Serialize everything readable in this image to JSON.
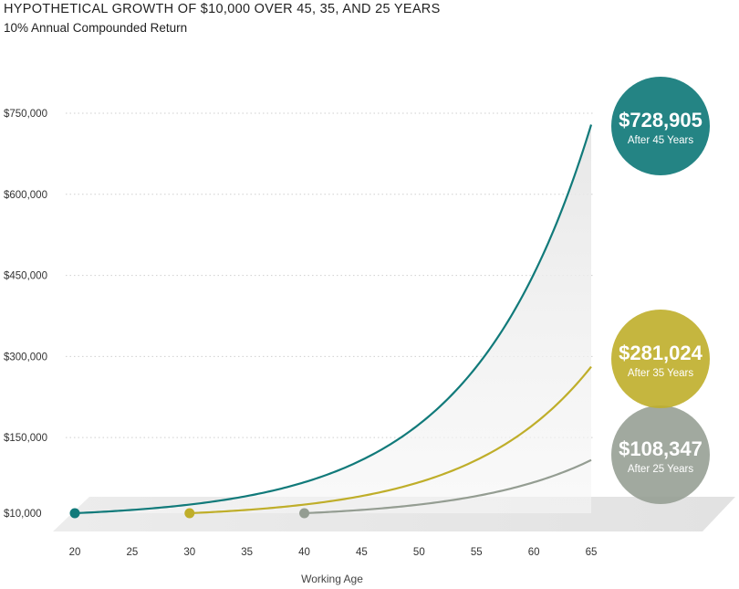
{
  "title": "HYPOTHETICAL GROWTH OF $10,000 OVER 45, 35, AND 25 YEARS",
  "subtitle": "10% Annual Compounded Return",
  "chart_data": {
    "type": "line",
    "xlabel": "Working Age",
    "ylabel": "",
    "x_ticks": [
      20,
      25,
      30,
      35,
      40,
      45,
      50,
      55,
      60,
      65
    ],
    "y_ticks": [
      {
        "value": 10000,
        "label": "$10,000"
      },
      {
        "value": 150000,
        "label": "$150,000"
      },
      {
        "value": 300000,
        "label": "$300,000"
      },
      {
        "value": 450000,
        "label": "$450,000"
      },
      {
        "value": 600000,
        "label": "$600,000"
      },
      {
        "value": 750000,
        "label": "$750,000"
      }
    ],
    "xlim": [
      20,
      65
    ],
    "ylim": [
      10000,
      750000
    ],
    "rate": 0.1,
    "grid": true,
    "series": [
      {
        "start_age": 20,
        "end_age": 65,
        "start_value": 10000,
        "end_value": 728905,
        "color": "#117a7a",
        "value_label": "$728,905",
        "sub_label": "After 45 Years"
      },
      {
        "start_age": 30,
        "end_age": 65,
        "start_value": 10000,
        "end_value": 281024,
        "color": "#bfae2a",
        "value_label": "$281,024",
        "sub_label": "After 35 Years"
      },
      {
        "start_age": 40,
        "end_age": 65,
        "start_value": 10000,
        "end_value": 108347,
        "color": "#949d92",
        "value_label": "$108,347",
        "sub_label": "After 25 Years"
      }
    ]
  }
}
